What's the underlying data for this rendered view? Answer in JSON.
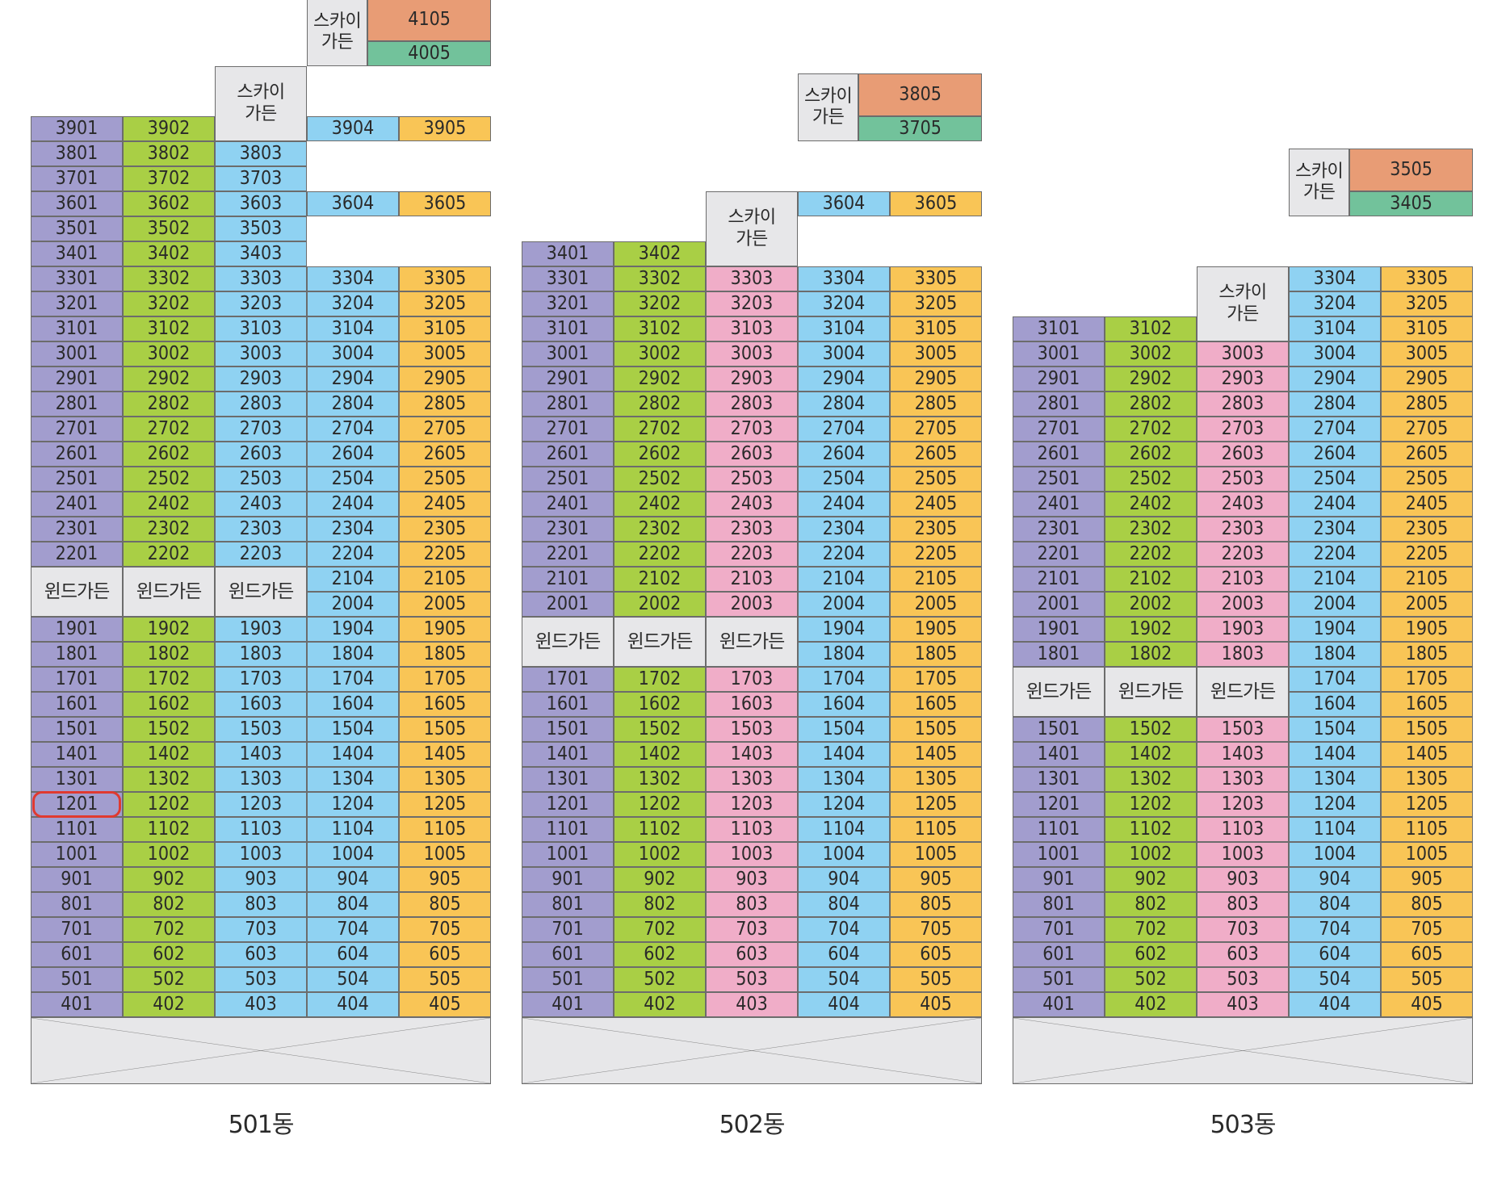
{
  "colors": {
    "col1": "#a29dce",
    "col2": "#a9cf45",
    "col3": "#8fd2f2",
    "col3_pink": "#f0adc8",
    "col4": "#8fd2f2",
    "col5": "#f9c556",
    "penthouse": "#e89c75",
    "penthouse_lower": "#72c29b",
    "garden": "#e7e7e9",
    "highlight": "#e03a30"
  },
  "legend": {
    "wind_garden": "윈드가든",
    "sky_garden": "스카이\n가든"
  },
  "highlighted_unit": "1201",
  "buildings": [
    {
      "name": "501동",
      "col3_color": "col3",
      "top_floors": [
        39,
        39,
        39,
        41,
        41
      ],
      "penthouse": [
        "4105",
        "4005"
      ],
      "wind_garden_floors": [
        20,
        21
      ],
      "wind_garden_cols": 3,
      "sky_garden_col12_floor": 38,
      "units_from_floor": 4
    },
    {
      "name": "502동",
      "col3_color": "col3_pink",
      "top_floors": [
        34,
        34,
        34,
        38,
        38
      ],
      "penthouse": [
        "3805",
        "3705"
      ],
      "wind_garden_floors": [
        18,
        19
      ],
      "wind_garden_cols": 3,
      "sky_garden_col12_floor": 35,
      "units_from_floor": 4
    },
    {
      "name": "503동",
      "col3_color": "col3_pink",
      "top_floors": [
        31,
        31,
        31,
        35,
        35
      ],
      "penthouse": [
        "3505",
        "3405"
      ],
      "wind_garden_floors": [
        16,
        17
      ],
      "wind_garden_cols": 3,
      "sky_garden_col12_floor": 32,
      "units_from_floor": 4
    }
  ]
}
